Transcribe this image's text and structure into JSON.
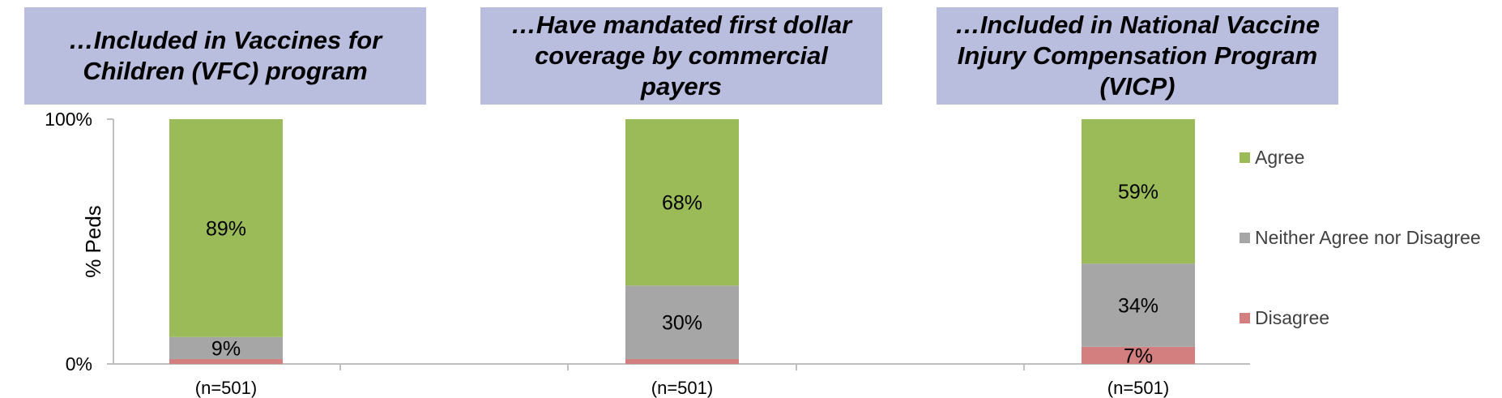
{
  "headers": [
    "…Included in Vaccines for Children (VFC) program",
    "…Have mandated first dollar coverage by commercial payers",
    "…Included in National Vaccine Injury Compensation Program (VICP)"
  ],
  "colors": {
    "agree": "#9bbb59",
    "neither": "#a6a6a6",
    "disagree": "#d47f7f",
    "header_bg": "#b9bedf",
    "axis": "#bfbfbf"
  },
  "legend": {
    "agree": "Agree",
    "neither": "Neither Agree nor Disagree",
    "disagree": "Disagree"
  },
  "chart_data": {
    "type": "bar",
    "stacked": true,
    "categories": [
      "(n=501)",
      "(n=501)",
      "(n=501)"
    ],
    "series": [
      {
        "name": "Disagree",
        "values": [
          2,
          2,
          7
        ],
        "labels": [
          "",
          "",
          "7%"
        ]
      },
      {
        "name": "Neither Agree nor Disagree",
        "values": [
          9,
          30,
          34
        ],
        "labels": [
          "9%",
          "30%",
          "34%"
        ]
      },
      {
        "name": "Agree",
        "values": [
          89,
          68,
          59
        ],
        "labels": [
          "89%",
          "68%",
          "59%"
        ]
      }
    ],
    "ylabel": "% Peds",
    "ylim": [
      0,
      100
    ],
    "yticks": [
      "0%",
      "100%"
    ],
    "legend_position": "right",
    "grid": false
  }
}
